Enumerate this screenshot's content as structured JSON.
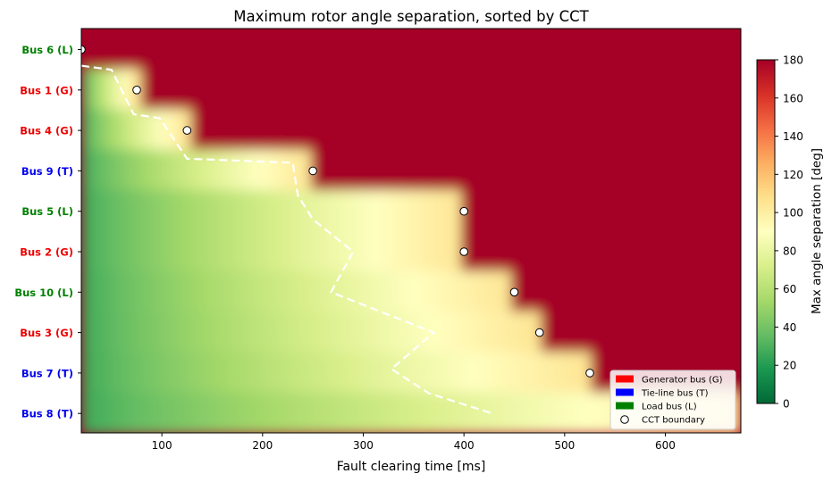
{
  "chart_data": {
    "type": "heatmap",
    "title": "Maximum rotor angle separation, sorted by CCT",
    "xlabel": "Fault clearing time [ms]",
    "ylabel": "",
    "xlim": [
      20,
      675
    ],
    "xticks": [
      100,
      200,
      300,
      400,
      500,
      600
    ],
    "grid": false,
    "categories": [
      {
        "label": "Bus 6 (L)",
        "type": "L",
        "cct": 20
      },
      {
        "label": "Bus 1 (G)",
        "type": "G",
        "cct": 75
      },
      {
        "label": "Bus 4 (G)",
        "type": "G",
        "cct": 125
      },
      {
        "label": "Bus 9 (T)",
        "type": "T",
        "cct": 250
      },
      {
        "label": "Bus 5 (L)",
        "type": "L",
        "cct": 400
      },
      {
        "label": "Bus 2 (G)",
        "type": "G",
        "cct": 400
      },
      {
        "label": "Bus 10 (L)",
        "type": "L",
        "cct": 450
      },
      {
        "label": "Bus 3 (G)",
        "type": "G",
        "cct": 475
      },
      {
        "label": "Bus 7 (T)",
        "type": "T",
        "cct": 525
      },
      {
        "label": "Bus 8 (T)",
        "type": "T",
        "cct": 675
      }
    ],
    "dashed_contour": [
      [
        20,
        0.4
      ],
      [
        50,
        0.5
      ],
      [
        72,
        1.6
      ],
      [
        98,
        1.7
      ],
      [
        125,
        2.7
      ],
      [
        230,
        2.8
      ],
      [
        235,
        3.6
      ],
      [
        250,
        4.2
      ],
      [
        290,
        5.0
      ],
      [
        268,
        6.0
      ],
      [
        370,
        7.0
      ],
      [
        328,
        7.9
      ],
      [
        365,
        8.5
      ],
      [
        428,
        9.0
      ]
    ],
    "bus_colors": {
      "G": "#ee0000",
      "T": "#0000ee",
      "L": "#008000"
    },
    "colorbar": {
      "label": "Max angle separation [deg]",
      "min": 0,
      "max": 180,
      "ticks": [
        0,
        20,
        40,
        60,
        80,
        100,
        120,
        140,
        160,
        180
      ],
      "colormap": "RdYlGn_r"
    },
    "legend": {
      "placement": "lower-right",
      "entries": [
        {
          "label": "Generator bus (G)",
          "color": "#ff0000",
          "kind": "patch"
        },
        {
          "label": "Tie-line bus (T)",
          "color": "#0000ff",
          "kind": "patch"
        },
        {
          "label": "Load bus (L)",
          "color": "#008000",
          "kind": "patch"
        },
        {
          "label": "CCT boundary",
          "color": "#ffffff",
          "kind": "marker"
        }
      ]
    }
  }
}
